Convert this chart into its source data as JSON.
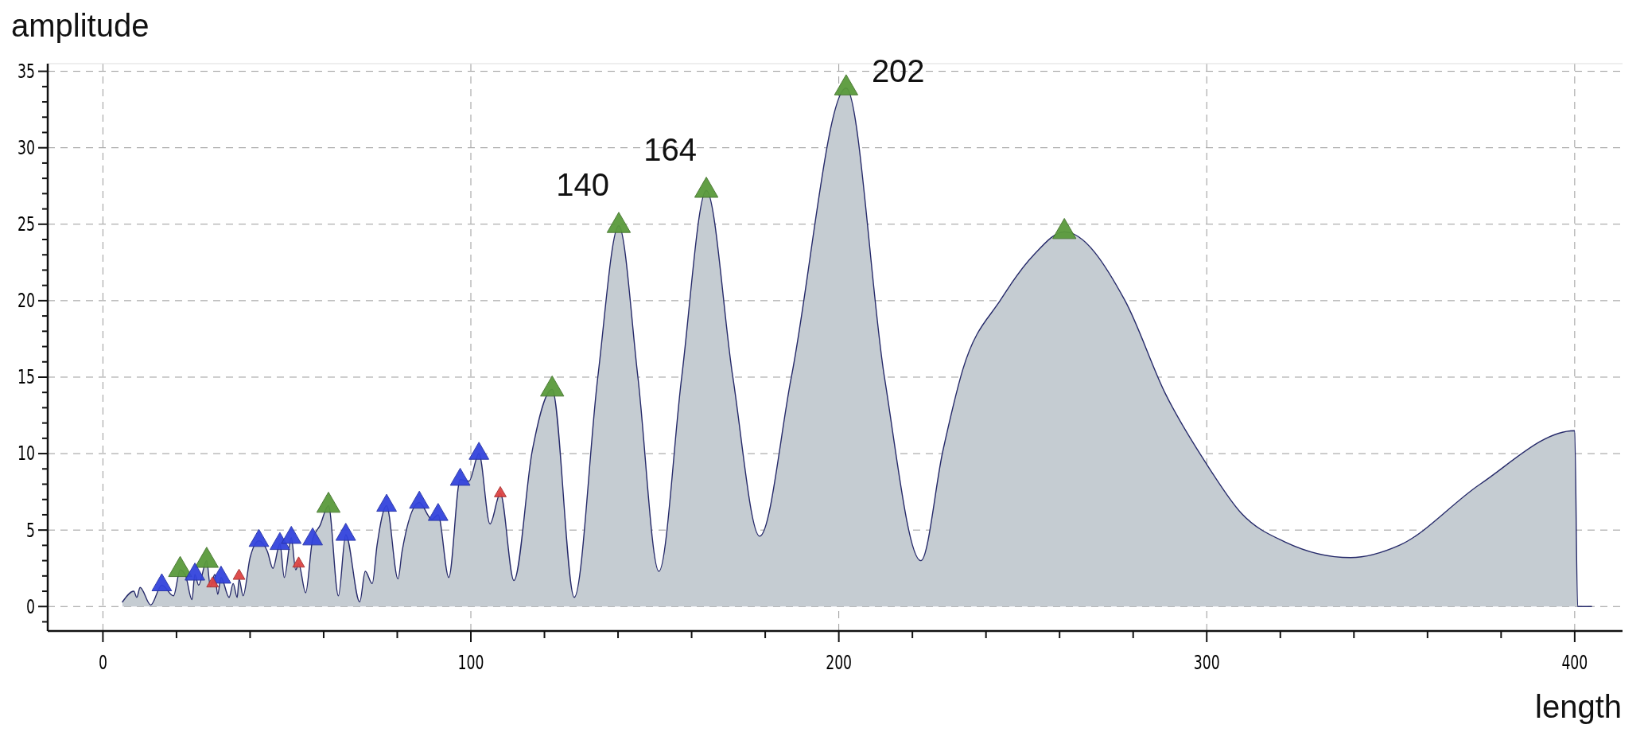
{
  "chart_data": {
    "type": "area",
    "xlabel": "length",
    "ylabel": "amplitude",
    "xlim": [
      -15,
      413
    ],
    "ylim": [
      -1.6,
      35.5
    ],
    "xticks": [
      0,
      {
        "value": 20,
        "label": null
      },
      {
        "value": 40,
        "label": null
      },
      {
        "value": 60,
        "label": null
      },
      {
        "value": 80,
        "label": null
      },
      100,
      {
        "value": 120,
        "label": null
      },
      {
        "value": 140,
        "label": null
      },
      {
        "value": 160,
        "label": null
      },
      {
        "value": 180,
        "label": null
      },
      200,
      {
        "value": 220,
        "label": null
      },
      {
        "value": 240,
        "label": null
      },
      {
        "value": 260,
        "label": null
      },
      {
        "value": 280,
        "label": null
      },
      300,
      {
        "value": 320,
        "label": null
      },
      {
        "value": 340,
        "label": null
      },
      {
        "value": 360,
        "label": null
      },
      {
        "value": 380,
        "label": null
      },
      400
    ],
    "yticks": [
      {
        "value": -1,
        "label": null
      },
      0,
      {
        "value": 1,
        "label": null
      },
      {
        "value": 2,
        "label": null
      },
      {
        "value": 3,
        "label": null
      },
      {
        "value": 4,
        "label": null
      },
      5,
      {
        "value": 6,
        "label": null
      },
      {
        "value": 7,
        "label": null
      },
      {
        "value": 8,
        "label": null
      },
      {
        "value": 9,
        "label": null
      },
      10,
      {
        "value": 11,
        "label": null
      },
      {
        "value": 12,
        "label": null
      },
      {
        "value": 13,
        "label": null
      },
      {
        "value": 14,
        "label": null
      },
      15,
      {
        "value": 16,
        "label": null
      },
      {
        "value": 17,
        "label": null
      },
      {
        "value": 18,
        "label": null
      },
      {
        "value": 19,
        "label": null
      },
      20,
      {
        "value": 21,
        "label": null
      },
      {
        "value": 22,
        "label": null
      },
      {
        "value": 23,
        "label": null
      },
      {
        "value": 24,
        "label": null
      },
      25,
      {
        "value": 26,
        "label": null
      },
      {
        "value": 27,
        "label": null
      },
      {
        "value": 28,
        "label": null
      },
      {
        "value": 29,
        "label": null
      },
      30,
      {
        "value": 31,
        "label": null
      },
      {
        "value": 32,
        "label": null
      },
      {
        "value": 33,
        "label": null
      },
      {
        "value": 34,
        "label": null
      },
      35
    ],
    "grid": true,
    "series": [
      {
        "color": "#c5ccd2",
        "x": [
          5.3,
          8.4,
          9.2,
          10.1,
          13,
          16,
          19.2,
          21,
          22.5,
          24.2,
          25,
          26,
          28.2,
          29.2,
          30.4,
          31.2,
          32.1,
          34.3,
          35.4,
          36.5,
          37,
          38.1,
          40,
          42.4,
          44.7,
          46.2,
          48.1,
          49.3,
          51.2,
          52.4,
          53.2,
          55.1,
          57,
          59,
          61.3,
          64,
          66,
          69.8,
          71.3,
          73.2,
          74.5,
          77.1,
          80.2,
          81.3,
          86,
          89.4,
          91.1,
          94,
          97.1,
          99.5,
          102.2,
          105.2,
          108,
          111.7,
          116.7,
          122.1,
          128.1,
          134.5,
          140.2,
          145.4,
          151.1,
          157.3,
          164,
          171.2,
          178.5,
          187.1,
          202,
          212.4,
          222.3,
          228.3,
          233.7,
          244.1,
          253,
          261.3,
          277.8,
          288.8,
          300,
          309.4,
          321.5,
          339.1,
          352.3,
          374.3,
          400,
          400.8,
          404.6
        ],
        "values": [
          0.3,
          1.0,
          0.6,
          1.25,
          0.1,
          1.4,
          0.7,
          2.4,
          2.0,
          0.45,
          2.1,
          1.4,
          3.0,
          1.3,
          2.1,
          0.8,
          1.9,
          0.6,
          1.5,
          0.6,
          1.8,
          0.7,
          3.2,
          4.3,
          3.6,
          2.5,
          4.1,
          1.9,
          4.5,
          2.4,
          2.8,
          0.9,
          4.4,
          5.3,
          6.6,
          0.7,
          4.7,
          0.3,
          2.3,
          1.5,
          4.0,
          6.6,
          1.8,
          3.6,
          6.8,
          5.7,
          6.0,
          1.9,
          8.3,
          8.2,
          10.0,
          5.4,
          7.4,
          1.7,
          10.2,
          14.2,
          0.6,
          15.0,
          24.9,
          15.0,
          2.3,
          15.0,
          27.2,
          15.0,
          4.6,
          15.0,
          33.9,
          15.0,
          3.0,
          10.2,
          15.5,
          20.1,
          23.0,
          24.5,
          20.0,
          13.9,
          9.3,
          6.1,
          4.2,
          3.2,
          4.0,
          8.0,
          11.5,
          0,
          0
        ]
      },
      {
        "type": "scatter",
        "color": "#5a9a3c",
        "marker": "triangle",
        "x": [
          21,
          28.2,
          61.3,
          122.1,
          140.2,
          164,
          202,
          261.3
        ],
        "values": [
          2.4,
          3.0,
          6.6,
          14.2,
          24.9,
          27.2,
          33.9,
          24.5
        ]
      },
      {
        "type": "scatter",
        "color": "#3344dd",
        "marker": "triangle",
        "x": [
          16,
          25,
          32.1,
          42.4,
          48.1,
          51.2,
          57,
          66,
          77.1,
          86,
          91.1,
          97.1,
          102.2
        ],
        "values": [
          1.4,
          2.1,
          1.9,
          4.3,
          4.1,
          4.5,
          4.4,
          4.7,
          6.6,
          6.8,
          6.0,
          8.3,
          10.0
        ]
      },
      {
        "type": "scatter",
        "color": "#dd4444",
        "marker": "triangle",
        "x": [
          29.8,
          37,
          53.2,
          108
        ],
        "values": [
          1.5,
          2.0,
          2.8,
          7.4
        ]
      }
    ],
    "annotations": [
      {
        "text": "140",
        "x": 140.2,
        "y": 24.9
      },
      {
        "text": "164",
        "x": 164,
        "y": 27.2
      },
      {
        "text": "202",
        "x": 202,
        "y": 33.9
      }
    ]
  }
}
